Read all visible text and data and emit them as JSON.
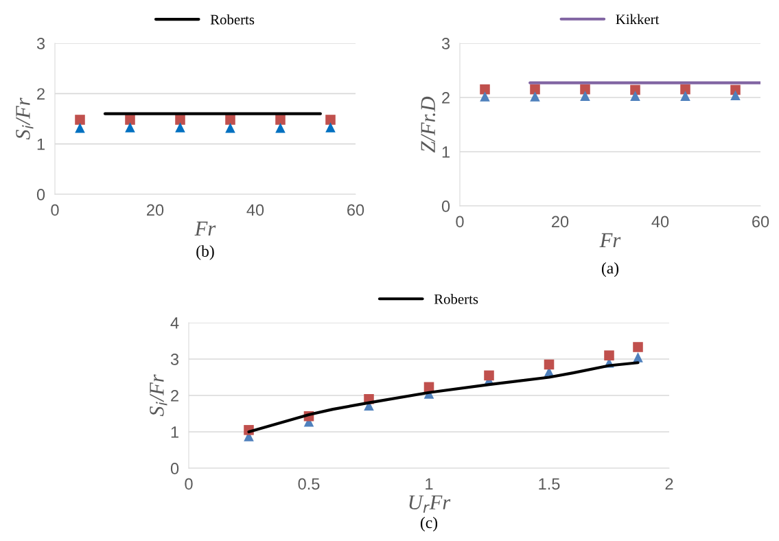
{
  "chart_data": [
    {
      "type": "scatter",
      "title": "(b)",
      "xlabel": "Fr",
      "ylabel": "S$_{i}$/Fr",
      "xlim": [
        0,
        60
      ],
      "xticks": [
        0,
        20,
        40,
        60
      ],
      "ylim": [
        0,
        3
      ],
      "yticks": [
        0,
        1,
        2,
        3
      ],
      "grid": "y",
      "legend": "top",
      "series": [
        {
          "name": "Roberts",
          "type": "line",
          "color": "#000000",
          "marker": "none",
          "line_style": "solid",
          "x": [
            10,
            53
          ],
          "values": [
            1.6,
            1.6
          ]
        },
        {
          "color": "#c0504d",
          "marker": "square",
          "x": [
            5,
            15,
            25,
            35,
            45,
            55
          ],
          "values": [
            1.48,
            1.48,
            1.48,
            1.48,
            1.48,
            1.48
          ]
        },
        {
          "color": "#0070c0",
          "marker": "triangle",
          "x": [
            5,
            15,
            25,
            35,
            45,
            55
          ],
          "values": [
            1.32,
            1.33,
            1.33,
            1.32,
            1.32,
            1.33
          ]
        }
      ]
    },
    {
      "type": "scatter",
      "title": "(a)",
      "xlabel": "Fr",
      "ylabel": "Z/Fr.D",
      "xlim": [
        0,
        60
      ],
      "xticks": [
        0,
        20,
        40,
        60
      ],
      "ylim": [
        0,
        3
      ],
      "yticks": [
        0,
        1,
        2,
        3
      ],
      "grid": "y",
      "legend": "top",
      "series": [
        {
          "name": "Kikkert",
          "type": "line",
          "color": "#8064a2",
          "marker": "none",
          "line_style": "solid",
          "x": [
            14,
            60
          ],
          "values": [
            2.27,
            2.27
          ]
        },
        {
          "color": "#c0504d",
          "marker": "square",
          "x": [
            5,
            15,
            25,
            35,
            45,
            55
          ],
          "values": [
            2.15,
            2.15,
            2.15,
            2.14,
            2.15,
            2.14
          ]
        },
        {
          "color": "#4f81bd",
          "marker": "triangle",
          "x": [
            5,
            15,
            25,
            35,
            45,
            55
          ],
          "values": [
            2.02,
            2.02,
            2.03,
            2.03,
            2.03,
            2.04
          ]
        }
      ]
    },
    {
      "type": "scatter",
      "title": "(c)",
      "xlabel": "U$_{r}$Fr",
      "ylabel": "S$_{i}$/Fr",
      "xlim": [
        0,
        2
      ],
      "xticks": [
        0,
        0.5,
        1,
        1.5,
        2
      ],
      "ylim": [
        0,
        4
      ],
      "yticks": [
        0,
        1,
        2,
        3,
        4
      ],
      "grid": "y",
      "legend": "top",
      "series": [
        {
          "name": "Roberts",
          "type": "line",
          "color": "#000000",
          "marker": "none",
          "line_style": "solid",
          "x": [
            0.25,
            0.5,
            0.6,
            0.75,
            1.0,
            1.25,
            1.5,
            1.6,
            1.75,
            1.87
          ],
          "values": [
            1.0,
            1.47,
            1.62,
            1.8,
            2.08,
            2.3,
            2.5,
            2.62,
            2.82,
            2.9
          ]
        },
        {
          "color": "#4f81bd",
          "marker": "triangle",
          "x": [
            0.25,
            0.5,
            0.75,
            1.0,
            1.25,
            1.5,
            1.75,
            1.87
          ],
          "values": [
            0.88,
            1.28,
            1.72,
            2.05,
            2.42,
            2.65,
            2.9,
            3.05
          ]
        },
        {
          "color": "#c0504d",
          "marker": "square",
          "x": [
            0.25,
            0.5,
            0.75,
            1.0,
            1.25,
            1.5,
            1.75,
            1.87
          ],
          "values": [
            1.05,
            1.43,
            1.9,
            2.23,
            2.55,
            2.85,
            3.1,
            3.33
          ]
        }
      ]
    }
  ]
}
